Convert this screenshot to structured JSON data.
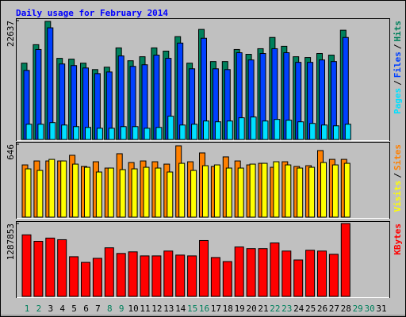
{
  "title": "Daily usage for February 2014",
  "legend_separator": "/",
  "chart_data": [
    {
      "type": "bar",
      "ylim": [
        0,
        22637
      ],
      "yticks": [
        22637
      ],
      "series": [
        {
          "name": "Hits",
          "color": "#00805c",
          "values": [
            14535,
            18054,
            22491,
            15453,
            15300,
            14535,
            13311,
            13770,
            17442,
            14994,
            15759,
            17442,
            16830,
            19584,
            14535,
            20961,
            14841,
            14841,
            17136,
            16218,
            17289,
            19431,
            17748,
            15759,
            15606,
            16371,
            16065,
            20808,
            null,
            null,
            null
          ]
        },
        {
          "name": "Files",
          "color": "#0040ff",
          "values": [
            13158,
            17136,
            21267,
            14382,
            14076,
            13617,
            12546,
            12852,
            15912,
            13923,
            14229,
            16065,
            15453,
            18360,
            13464,
            19278,
            13464,
            13311,
            16524,
            15147,
            16371,
            17289,
            16524,
            14688,
            14688,
            15147,
            14841,
            19431,
            null,
            null,
            null
          ]
        },
        {
          "name": "Pages",
          "color": "#00e0ff",
          "values": [
            2907,
            2907,
            3213,
            2754,
            2448,
            2295,
            2142,
            2142,
            2448,
            2448,
            2142,
            2295,
            4437,
            2754,
            2907,
            3519,
            3366,
            3519,
            4131,
            4284,
            3519,
            3825,
            3672,
            3366,
            3060,
            2754,
            2601,
            2907,
            null,
            null,
            null
          ]
        }
      ]
    },
    {
      "type": "bar",
      "ylim": [
        0,
        646
      ],
      "yticks": [
        646
      ],
      "series": [
        {
          "name": "Sites",
          "color": "#ff8000",
          "values": [
            463,
            498,
            498,
            498,
            548,
            449,
            491,
            435,
            562,
            484,
            498,
            491,
            470,
            632,
            491,
            569,
            449,
            534,
            498,
            463,
            477,
            442,
            491,
            449,
            456,
            590,
            512,
            512,
            null,
            null,
            null
          ]
        },
        {
          "name": "Visits",
          "color": "#ffff00",
          "values": [
            428,
            414,
            512,
            498,
            470,
            442,
            400,
            435,
            421,
            428,
            442,
            435,
            400,
            477,
            414,
            456,
            463,
            435,
            435,
            470,
            477,
            491,
            463,
            435,
            442,
            484,
            463,
            477,
            null,
            null,
            null
          ]
        }
      ]
    },
    {
      "type": "bar",
      "ylim": [
        0,
        1287853
      ],
      "yticks": [
        1287853
      ],
      "categories": [
        "1",
        "2",
        "3",
        "4",
        "5",
        "6",
        "7",
        "8",
        "9",
        "10",
        "11",
        "12",
        "13",
        "14",
        "15",
        "16",
        "17",
        "18",
        "19",
        "20",
        "21",
        "22",
        "23",
        "24",
        "25",
        "26",
        "27",
        "28",
        "29",
        "30",
        "31"
      ],
      "category_colors": [
        "#00805c",
        "#00805c",
        "#000000",
        "#000000",
        "#000000",
        "#000000",
        "#000000",
        "#00805c",
        "#00805c",
        "#000000",
        "#000000",
        "#000000",
        "#000000",
        "#000000",
        "#00805c",
        "#00805c",
        "#000000",
        "#000000",
        "#000000",
        "#000000",
        "#000000",
        "#00805c",
        "#00805c",
        "#000000",
        "#000000",
        "#000000",
        "#000000",
        "#000000",
        "#00805c",
        "#00805c",
        "#000000"
      ],
      "series": [
        {
          "name": "KBytes",
          "color": "#ff0000",
          "values": [
            1087484,
            973012,
            1030248,
            1001630,
            701141,
            600978,
            672523,
            858540,
            758377,
            786995,
            715450,
            715450,
            801304,
            729759,
            715450,
            987321,
            686832,
            615287,
            872849,
            844231,
            844231,
            944394,
            801304,
            643905,
            815613,
            801304,
            744068,
            1287853,
            null,
            null,
            null
          ]
        }
      ]
    }
  ]
}
